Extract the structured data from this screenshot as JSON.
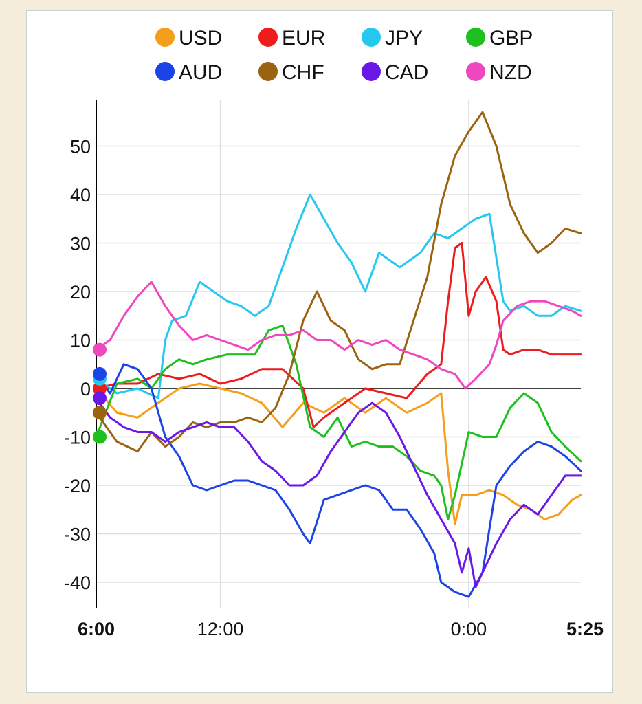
{
  "chart_data": {
    "type": "line",
    "title": "",
    "xlabel": "",
    "ylabel": "",
    "ylim": [
      -45,
      60
    ],
    "xlim": [
      0,
      1405
    ],
    "grid": true,
    "legend_position": "top",
    "x_ticks": [
      {
        "value": 0,
        "label": "6:00",
        "bold": true
      },
      {
        "value": 360,
        "label": "12:00",
        "bold": false
      },
      {
        "value": 1080,
        "label": "0:00",
        "bold": false
      },
      {
        "value": 1405,
        "label": "5:25",
        "bold": true
      }
    ],
    "y_ticks": [
      50,
      40,
      30,
      20,
      10,
      0,
      -10,
      -20,
      -30,
      -40
    ],
    "series": [
      {
        "name": "USD",
        "color": "#f59e1b",
        "points": [
          [
            0,
            0
          ],
          [
            60,
            -5
          ],
          [
            120,
            -6
          ],
          [
            180,
            -3
          ],
          [
            240,
            0
          ],
          [
            300,
            1
          ],
          [
            360,
            0
          ],
          [
            420,
            -1
          ],
          [
            480,
            -3
          ],
          [
            540,
            -8
          ],
          [
            600,
            -3
          ],
          [
            660,
            -5
          ],
          [
            720,
            -2
          ],
          [
            780,
            -5
          ],
          [
            840,
            -2
          ],
          [
            900,
            -5
          ],
          [
            960,
            -3
          ],
          [
            1000,
            -1
          ],
          [
            1020,
            -17
          ],
          [
            1040,
            -28
          ],
          [
            1060,
            -22
          ],
          [
            1100,
            -22
          ],
          [
            1140,
            -21
          ],
          [
            1180,
            -22
          ],
          [
            1220,
            -24
          ],
          [
            1260,
            -25
          ],
          [
            1300,
            -27
          ],
          [
            1340,
            -26
          ],
          [
            1380,
            -23
          ],
          [
            1405,
            -22
          ]
        ]
      },
      {
        "name": "EUR",
        "color": "#ee1c1c",
        "points": [
          [
            0,
            0
          ],
          [
            60,
            1
          ],
          [
            120,
            1
          ],
          [
            180,
            3
          ],
          [
            240,
            2
          ],
          [
            300,
            3
          ],
          [
            360,
            1
          ],
          [
            420,
            2
          ],
          [
            480,
            4
          ],
          [
            540,
            4
          ],
          [
            600,
            0
          ],
          [
            630,
            -8
          ],
          [
            660,
            -6
          ],
          [
            720,
            -3
          ],
          [
            780,
            0
          ],
          [
            840,
            -1
          ],
          [
            900,
            -2
          ],
          [
            960,
            3
          ],
          [
            1000,
            5
          ],
          [
            1020,
            18
          ],
          [
            1040,
            29
          ],
          [
            1060,
            30
          ],
          [
            1080,
            15
          ],
          [
            1100,
            20
          ],
          [
            1130,
            23
          ],
          [
            1160,
            18
          ],
          [
            1180,
            8
          ],
          [
            1200,
            7
          ],
          [
            1240,
            8
          ],
          [
            1280,
            8
          ],
          [
            1320,
            7
          ],
          [
            1360,
            7
          ],
          [
            1405,
            7
          ]
        ]
      },
      {
        "name": "JPY",
        "color": "#27c8f0",
        "points": [
          [
            0,
            2
          ],
          [
            60,
            -1
          ],
          [
            120,
            0
          ],
          [
            180,
            -2
          ],
          [
            200,
            10
          ],
          [
            220,
            14
          ],
          [
            260,
            15
          ],
          [
            300,
            22
          ],
          [
            340,
            20
          ],
          [
            380,
            18
          ],
          [
            420,
            17
          ],
          [
            460,
            15
          ],
          [
            500,
            17
          ],
          [
            540,
            25
          ],
          [
            580,
            33
          ],
          [
            620,
            40
          ],
          [
            660,
            35
          ],
          [
            700,
            30
          ],
          [
            740,
            26
          ],
          [
            780,
            20
          ],
          [
            820,
            28
          ],
          [
            880,
            25
          ],
          [
            940,
            28
          ],
          [
            980,
            32
          ],
          [
            1020,
            31
          ],
          [
            1060,
            33
          ],
          [
            1100,
            35
          ],
          [
            1140,
            36
          ],
          [
            1180,
            18
          ],
          [
            1200,
            16
          ],
          [
            1240,
            17
          ],
          [
            1280,
            15
          ],
          [
            1320,
            15
          ],
          [
            1360,
            17
          ],
          [
            1405,
            16
          ]
        ]
      },
      {
        "name": "GBP",
        "color": "#1ec01e",
        "points": [
          [
            0,
            -10
          ],
          [
            60,
            1
          ],
          [
            120,
            2
          ],
          [
            160,
            0
          ],
          [
            200,
            4
          ],
          [
            240,
            6
          ],
          [
            280,
            5
          ],
          [
            320,
            6
          ],
          [
            380,
            7
          ],
          [
            420,
            7
          ],
          [
            460,
            7
          ],
          [
            500,
            12
          ],
          [
            540,
            13
          ],
          [
            580,
            5
          ],
          [
            620,
            -8
          ],
          [
            660,
            -10
          ],
          [
            700,
            -6
          ],
          [
            740,
            -12
          ],
          [
            780,
            -11
          ],
          [
            820,
            -12
          ],
          [
            860,
            -12
          ],
          [
            900,
            -14
          ],
          [
            940,
            -17
          ],
          [
            980,
            -18
          ],
          [
            1000,
            -20
          ],
          [
            1020,
            -27
          ],
          [
            1040,
            -22
          ],
          [
            1080,
            -9
          ],
          [
            1120,
            -10
          ],
          [
            1160,
            -10
          ],
          [
            1200,
            -4
          ],
          [
            1240,
            -1
          ],
          [
            1280,
            -3
          ],
          [
            1320,
            -9
          ],
          [
            1360,
            -12
          ],
          [
            1405,
            -15
          ]
        ]
      },
      {
        "name": "AUD",
        "color": "#1a44e8",
        "points": [
          [
            0,
            3
          ],
          [
            40,
            -1
          ],
          [
            80,
            5
          ],
          [
            120,
            4
          ],
          [
            160,
            0
          ],
          [
            200,
            -10
          ],
          [
            240,
            -14
          ],
          [
            280,
            -20
          ],
          [
            320,
            -21
          ],
          [
            360,
            -20
          ],
          [
            400,
            -19
          ],
          [
            440,
            -19
          ],
          [
            480,
            -20
          ],
          [
            520,
            -21
          ],
          [
            560,
            -25
          ],
          [
            600,
            -30
          ],
          [
            620,
            -32
          ],
          [
            660,
            -23
          ],
          [
            700,
            -22
          ],
          [
            740,
            -21
          ],
          [
            780,
            -20
          ],
          [
            820,
            -21
          ],
          [
            860,
            -25
          ],
          [
            900,
            -25
          ],
          [
            940,
            -29
          ],
          [
            980,
            -34
          ],
          [
            1000,
            -40
          ],
          [
            1040,
            -42
          ],
          [
            1080,
            -43
          ],
          [
            1120,
            -38
          ],
          [
            1160,
            -20
          ],
          [
            1200,
            -16
          ],
          [
            1240,
            -13
          ],
          [
            1280,
            -11
          ],
          [
            1320,
            -12
          ],
          [
            1360,
            -14
          ],
          [
            1405,
            -17
          ]
        ]
      },
      {
        "name": "CHF",
        "color": "#9b6310",
        "points": [
          [
            0,
            -5
          ],
          [
            60,
            -11
          ],
          [
            120,
            -13
          ],
          [
            160,
            -9
          ],
          [
            200,
            -12
          ],
          [
            240,
            -10
          ],
          [
            280,
            -7
          ],
          [
            320,
            -8
          ],
          [
            360,
            -7
          ],
          [
            400,
            -7
          ],
          [
            440,
            -6
          ],
          [
            480,
            -7
          ],
          [
            520,
            -4
          ],
          [
            560,
            3
          ],
          [
            600,
            14
          ],
          [
            640,
            20
          ],
          [
            680,
            14
          ],
          [
            720,
            12
          ],
          [
            760,
            6
          ],
          [
            800,
            4
          ],
          [
            840,
            5
          ],
          [
            880,
            5
          ],
          [
            920,
            14
          ],
          [
            960,
            23
          ],
          [
            1000,
            38
          ],
          [
            1040,
            48
          ],
          [
            1080,
            53
          ],
          [
            1120,
            57
          ],
          [
            1160,
            50
          ],
          [
            1200,
            38
          ],
          [
            1240,
            32
          ],
          [
            1280,
            28
          ],
          [
            1320,
            30
          ],
          [
            1360,
            33
          ],
          [
            1405,
            32
          ]
        ]
      },
      {
        "name": "CAD",
        "color": "#6a18e8",
        "points": [
          [
            0,
            -2
          ],
          [
            40,
            -6
          ],
          [
            80,
            -8
          ],
          [
            120,
            -9
          ],
          [
            160,
            -9
          ],
          [
            200,
            -11
          ],
          [
            240,
            -9
          ],
          [
            280,
            -8
          ],
          [
            320,
            -7
          ],
          [
            360,
            -8
          ],
          [
            400,
            -8
          ],
          [
            440,
            -11
          ],
          [
            480,
            -15
          ],
          [
            520,
            -17
          ],
          [
            560,
            -20
          ],
          [
            600,
            -20
          ],
          [
            640,
            -18
          ],
          [
            680,
            -13
          ],
          [
            720,
            -9
          ],
          [
            760,
            -5
          ],
          [
            800,
            -3
          ],
          [
            840,
            -5
          ],
          [
            880,
            -10
          ],
          [
            920,
            -16
          ],
          [
            960,
            -22
          ],
          [
            1000,
            -27
          ],
          [
            1040,
            -32
          ],
          [
            1060,
            -38
          ],
          [
            1080,
            -33
          ],
          [
            1100,
            -41
          ],
          [
            1120,
            -38
          ],
          [
            1140,
            -35
          ],
          [
            1160,
            -32
          ],
          [
            1200,
            -27
          ],
          [
            1240,
            -24
          ],
          [
            1280,
            -26
          ],
          [
            1320,
            -22
          ],
          [
            1360,
            -18
          ],
          [
            1405,
            -18
          ]
        ]
      },
      {
        "name": "NZD",
        "color": "#ef47c0",
        "points": [
          [
            0,
            8
          ],
          [
            40,
            10
          ],
          [
            80,
            15
          ],
          [
            120,
            19
          ],
          [
            160,
            22
          ],
          [
            200,
            17
          ],
          [
            240,
            13
          ],
          [
            280,
            10
          ],
          [
            320,
            11
          ],
          [
            360,
            10
          ],
          [
            400,
            9
          ],
          [
            440,
            8
          ],
          [
            480,
            10
          ],
          [
            520,
            11
          ],
          [
            560,
            11
          ],
          [
            600,
            12
          ],
          [
            640,
            10
          ],
          [
            680,
            10
          ],
          [
            720,
            8
          ],
          [
            760,
            10
          ],
          [
            800,
            9
          ],
          [
            840,
            10
          ],
          [
            880,
            8
          ],
          [
            920,
            7
          ],
          [
            960,
            6
          ],
          [
            1000,
            4
          ],
          [
            1040,
            3
          ],
          [
            1070,
            0
          ],
          [
            1100,
            2
          ],
          [
            1140,
            5
          ],
          [
            1160,
            9
          ],
          [
            1180,
            14
          ],
          [
            1220,
            17
          ],
          [
            1260,
            18
          ],
          [
            1300,
            18
          ],
          [
            1340,
            17
          ],
          [
            1380,
            16
          ],
          [
            1405,
            15
          ]
        ]
      }
    ]
  }
}
